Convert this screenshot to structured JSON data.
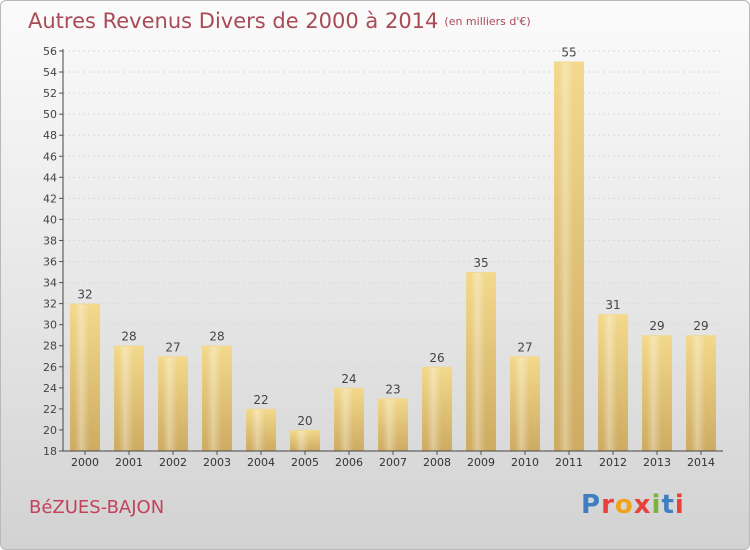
{
  "header": {
    "title": "Autres Revenus Divers de 2000 à 2014",
    "subtitle": "(en milliers d'€)"
  },
  "footer": {
    "commune": "BéZUES-BAJON",
    "logo_text": "Proxiti",
    "logo_colors": [
      "#3f7fc1",
      "#e8403a",
      "#f1a21b",
      "#e8403a",
      "#7bb23b",
      "#3f7fc1",
      "#e8403a"
    ]
  },
  "chart_data": {
    "type": "bar",
    "title": "Autres Revenus Divers de 2000 à 2014",
    "subtitle": "(en milliers d'€)",
    "xlabel": "",
    "ylabel": "",
    "categories": [
      "2000",
      "2001",
      "2002",
      "2003",
      "2004",
      "2005",
      "2006",
      "2007",
      "2008",
      "2009",
      "2010",
      "2011",
      "2012",
      "2013",
      "2014"
    ],
    "values": [
      32,
      28,
      27,
      28,
      22,
      20,
      24,
      23,
      26,
      35,
      27,
      55,
      31,
      29,
      29
    ],
    "ylim": [
      18,
      56
    ],
    "yticks": [
      18,
      20,
      22,
      24,
      26,
      28,
      30,
      32,
      34,
      36,
      38,
      40,
      42,
      44,
      46,
      48,
      50,
      52,
      54,
      56
    ],
    "grid": true,
    "bar_color": "#dfc27a",
    "title_color": "#a94a56"
  }
}
